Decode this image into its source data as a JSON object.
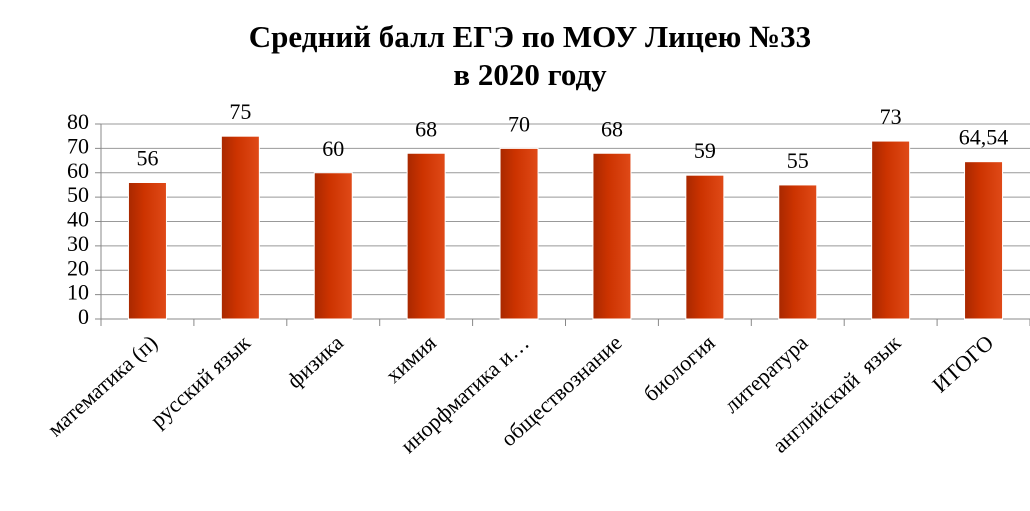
{
  "chart_data": {
    "type": "bar",
    "title": [
      "Средний балл ЕГЭ по МОУ Лицею №33",
      "в 2020 году"
    ],
    "categories": [
      "математика (п)",
      "русский язык",
      "физика",
      "химия",
      "инорфматика и…",
      "обществознание",
      "биология",
      "литература",
      "английский  язык",
      "ИТОГО"
    ],
    "values": [
      56,
      75,
      60,
      68,
      70,
      68,
      59,
      55,
      73,
      64.54
    ],
    "value_labels": [
      "56",
      "75",
      "60",
      "68",
      "70",
      "68",
      "59",
      "55",
      "73",
      "64,54"
    ],
    "color": "#cc3300",
    "ylim": [
      0,
      80
    ],
    "yticks": [
      0,
      10,
      20,
      30,
      40,
      50,
      60,
      70,
      80
    ],
    "grid": true
  }
}
